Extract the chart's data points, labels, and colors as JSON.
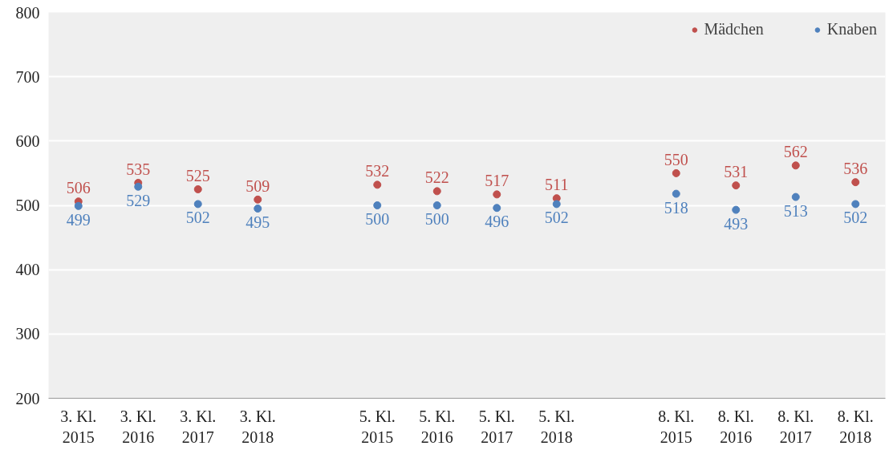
{
  "chart_data": {
    "type": "scatter",
    "categories": [
      "3. Kl.\n2015",
      "3. Kl.\n2016",
      "3. Kl.\n2017",
      "3. Kl.\n2018",
      null,
      "5. Kl.\n2015",
      "5. Kl.\n2016",
      "5. Kl.\n2017",
      "5. Kl.\n2018",
      null,
      "8. Kl.\n2015",
      "8. Kl.\n2016",
      "8. Kl.\n2017",
      "8. Kl.\n2018"
    ],
    "series": [
      {
        "name": "Mädchen",
        "color": "#c0504d",
        "values": [
          506,
          535,
          525,
          509,
          null,
          532,
          522,
          517,
          511,
          null,
          550,
          531,
          562,
          536
        ]
      },
      {
        "name": "Knaben",
        "color": "#4f81bd",
        "values": [
          499,
          529,
          502,
          495,
          null,
          500,
          500,
          496,
          502,
          null,
          518,
          493,
          513,
          502
        ]
      }
    ],
    "ylim": [
      200,
      800
    ],
    "yticks": [
      200,
      300,
      400,
      500,
      600,
      700,
      800
    ],
    "grid": "y",
    "legend": "top right",
    "marker": "circle",
    "data_labels": true
  }
}
